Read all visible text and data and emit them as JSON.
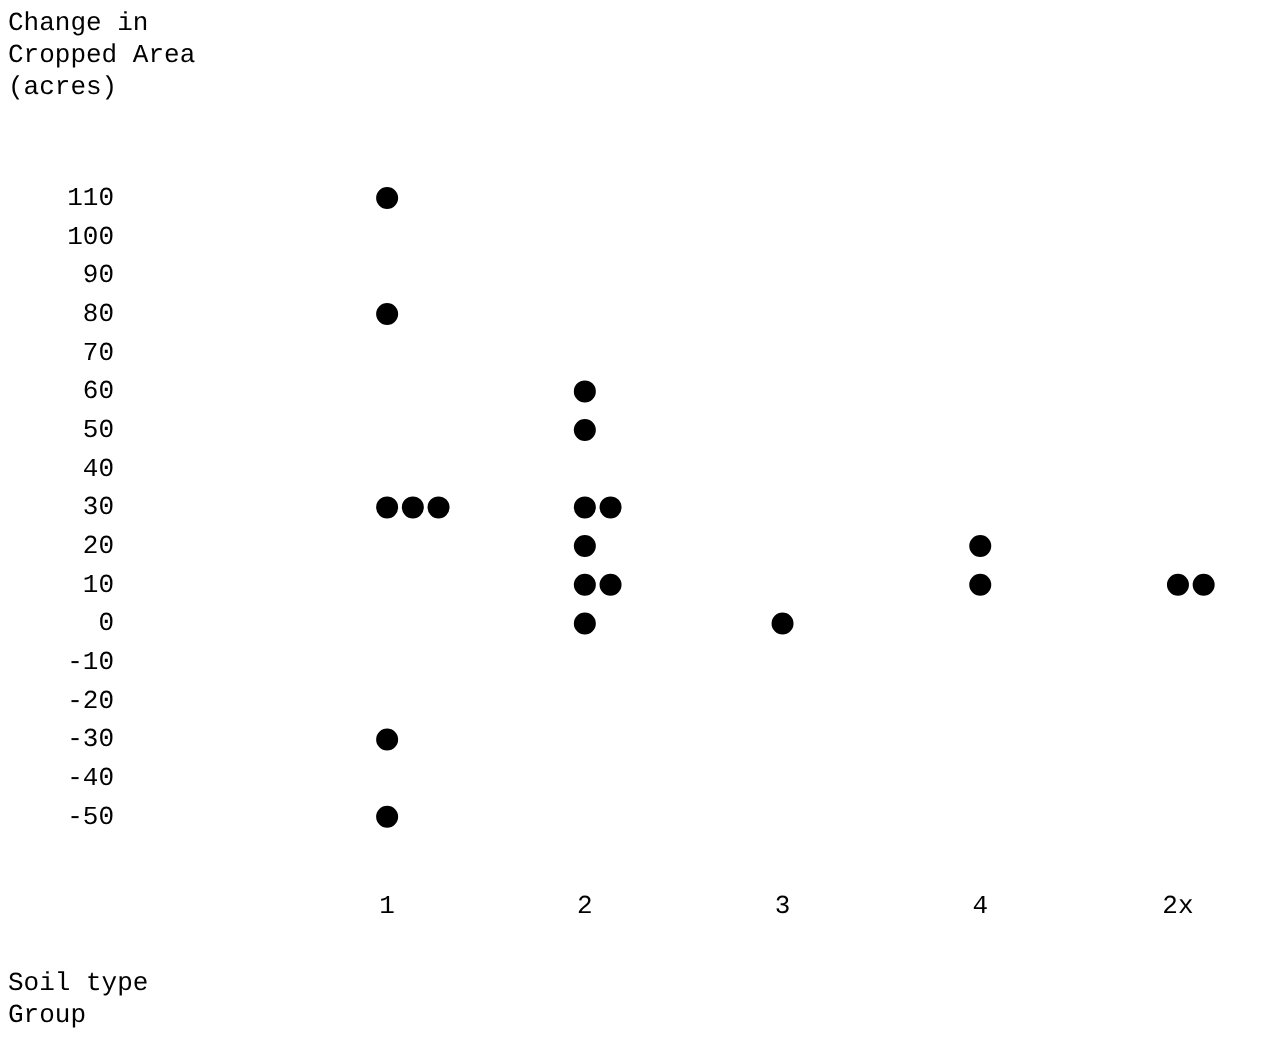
{
  "chart_data": {
    "type": "scatter",
    "ylabel": "Change in Cropped Area (acres)",
    "xlabel": "Soil type Group",
    "categories": [
      "1",
      "2",
      "3",
      "4",
      "2x"
    ],
    "series": [
      {
        "type": "scatter",
        "color": "#000000",
        "x": [
          "1",
          "1",
          "1",
          "1",
          "1",
          "1",
          "1",
          "2",
          "2",
          "2",
          "2",
          "2",
          "2",
          "2",
          "2",
          "3",
          "4",
          "4",
          "2x",
          "2x"
        ],
        "values": [
          110,
          80,
          30,
          30,
          30,
          -30,
          -50,
          60,
          50,
          30,
          30,
          20,
          10,
          10,
          0,
          0,
          20,
          10,
          10,
          10
        ]
      }
    ],
    "ylim": [
      -50,
      110
    ],
    "yticks": [
      -50,
      -40,
      -30,
      -20,
      -10,
      0,
      10,
      20,
      30,
      40,
      50,
      60,
      70,
      80,
      90,
      100,
      110
    ],
    "grid": false,
    "legend": false,
    "marker": "circle"
  }
}
